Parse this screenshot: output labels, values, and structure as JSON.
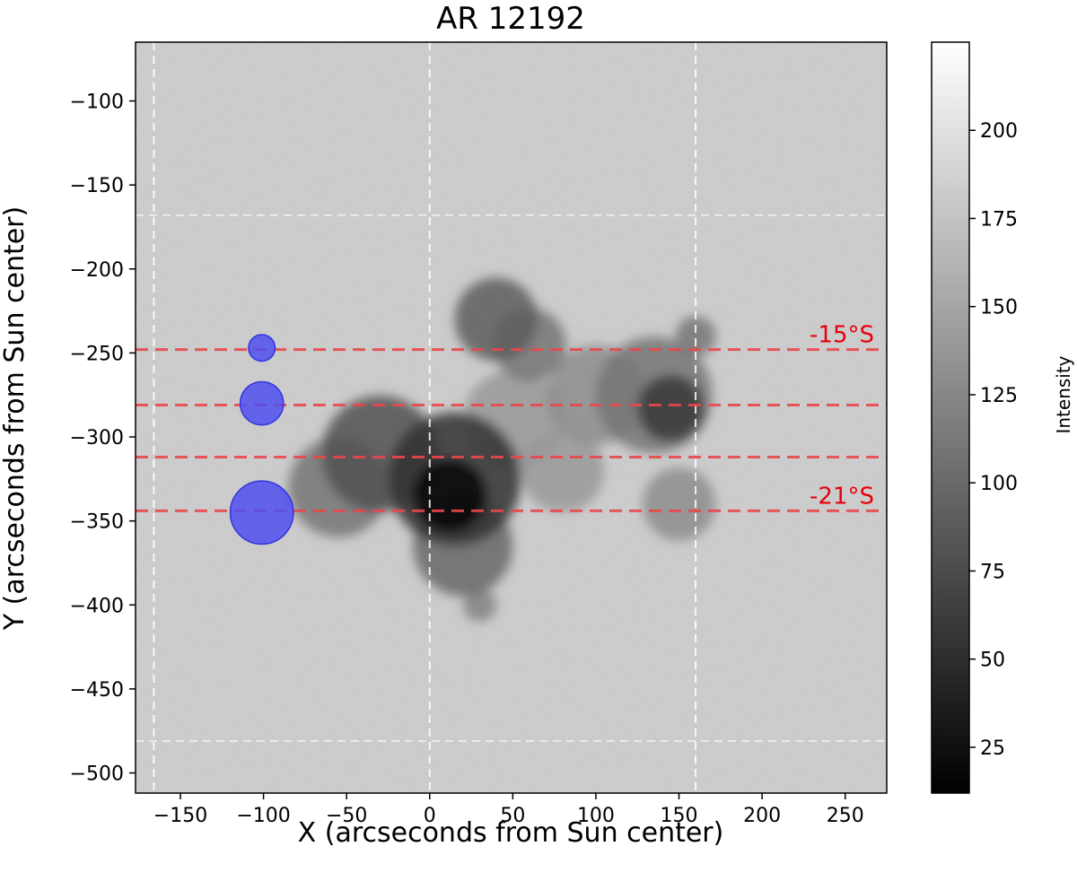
{
  "chart_data": {
    "type": "heatmap",
    "title": "AR 12192",
    "xlabel": "X (arcseconds from Sun center)",
    "ylabel": "Y (arcseconds from Sun center)",
    "xlim": [
      -177,
      275
    ],
    "ylim": [
      -512,
      -65
    ],
    "y_inverted": true,
    "xticks": [
      -150,
      -100,
      -50,
      0,
      50,
      100,
      150,
      200,
      250
    ],
    "yticks": [
      -100,
      -150,
      -200,
      -250,
      -300,
      -350,
      -400,
      -450,
      -500
    ],
    "colorbar": {
      "label": "Intensity",
      "range": [
        12,
        225
      ],
      "ticks": [
        25,
        50,
        75,
        100,
        125,
        150,
        175,
        200
      ],
      "colormap": "gray"
    },
    "latitude_lines": {
      "color": "#e8474b",
      "y": [
        -248,
        -281,
        -312,
        -344
      ],
      "labels": [
        {
          "text": "-15°S",
          "y": -248
        },
        {
          "text": "-21°S",
          "y": -344
        }
      ]
    },
    "grid_lines": {
      "color": "#ffffff",
      "vertical_x": [
        -166,
        0,
        160
      ],
      "horizontal_y": [
        -168,
        -481
      ]
    },
    "markers": {
      "color": "#4f4ff0",
      "points": [
        {
          "x": -101,
          "y": -247,
          "r": 8
        },
        {
          "x": -101,
          "y": -280,
          "r": 13
        },
        {
          "x": -101,
          "y": -345,
          "r": 19
        }
      ]
    },
    "sunspots": [
      {
        "x": 12,
        "y": -335,
        "r": 22,
        "v": 14
      },
      {
        "x": 15,
        "y": -325,
        "r": 40,
        "v": 55
      },
      {
        "x": -30,
        "y": -310,
        "r": 35,
        "v": 80
      },
      {
        "x": -55,
        "y": -330,
        "r": 30,
        "v": 110
      },
      {
        "x": 20,
        "y": -365,
        "r": 30,
        "v": 100
      },
      {
        "x": 40,
        "y": -230,
        "r": 25,
        "v": 90
      },
      {
        "x": 60,
        "y": -245,
        "r": 22,
        "v": 110
      },
      {
        "x": 145,
        "y": -283,
        "r": 20,
        "v": 60
      },
      {
        "x": 135,
        "y": -275,
        "r": 35,
        "v": 110
      },
      {
        "x": 100,
        "y": -275,
        "r": 30,
        "v": 130
      },
      {
        "x": 160,
        "y": -240,
        "r": 12,
        "v": 110
      },
      {
        "x": 150,
        "y": -340,
        "r": 22,
        "v": 130
      },
      {
        "x": 50,
        "y": -290,
        "r": 30,
        "v": 140
      },
      {
        "x": 80,
        "y": -320,
        "r": 25,
        "v": 140
      },
      {
        "x": 30,
        "y": -400,
        "r": 10,
        "v": 120
      }
    ]
  }
}
